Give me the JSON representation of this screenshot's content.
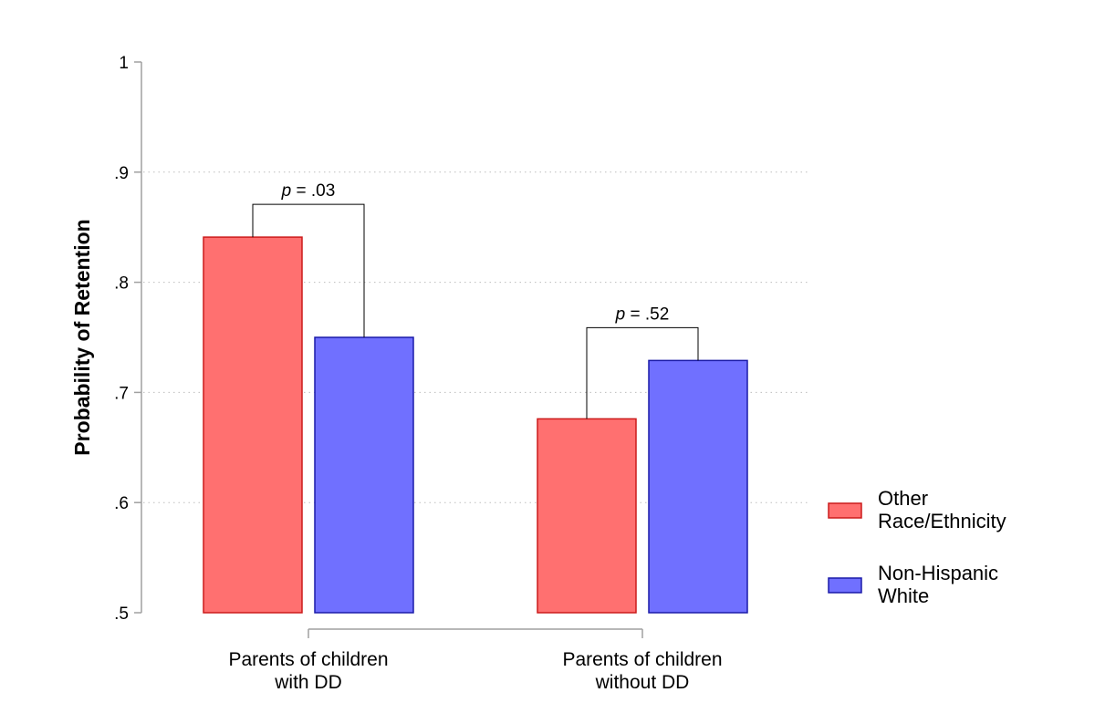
{
  "chart_data": {
    "type": "bar",
    "ylabel": "Probability of Retention",
    "ylim": [
      0.5,
      1.0
    ],
    "yticks": [
      {
        "value": 0.5,
        "label": ".5"
      },
      {
        "value": 0.6,
        "label": ".6"
      },
      {
        "value": 0.7,
        "label": ".7"
      },
      {
        "value": 0.8,
        "label": ".8"
      },
      {
        "value": 0.9,
        "label": ".9"
      },
      {
        "value": 1.0,
        "label": "1"
      }
    ],
    "grid": "horizontal dotted",
    "categories": [
      [
        "Parents of children",
        "with DD"
      ],
      [
        "Parents of children",
        "without DD"
      ]
    ],
    "series": [
      {
        "name": [
          "Other",
          "Race/Ethnicity"
        ],
        "color": "#ff7070",
        "stroke": "#cc1a1a",
        "values": [
          0.841,
          0.676
        ]
      },
      {
        "name": [
          "Non-Hispanic",
          "White"
        ],
        "color": "#7070ff",
        "stroke": "#1a1aa8",
        "values": [
          0.75,
          0.729
        ]
      }
    ],
    "annotations": [
      {
        "category": 0,
        "prefix": "p",
        "text": " = .03"
      },
      {
        "category": 1,
        "prefix": "p",
        "text": " = .52"
      }
    ],
    "legend_position": "right"
  }
}
